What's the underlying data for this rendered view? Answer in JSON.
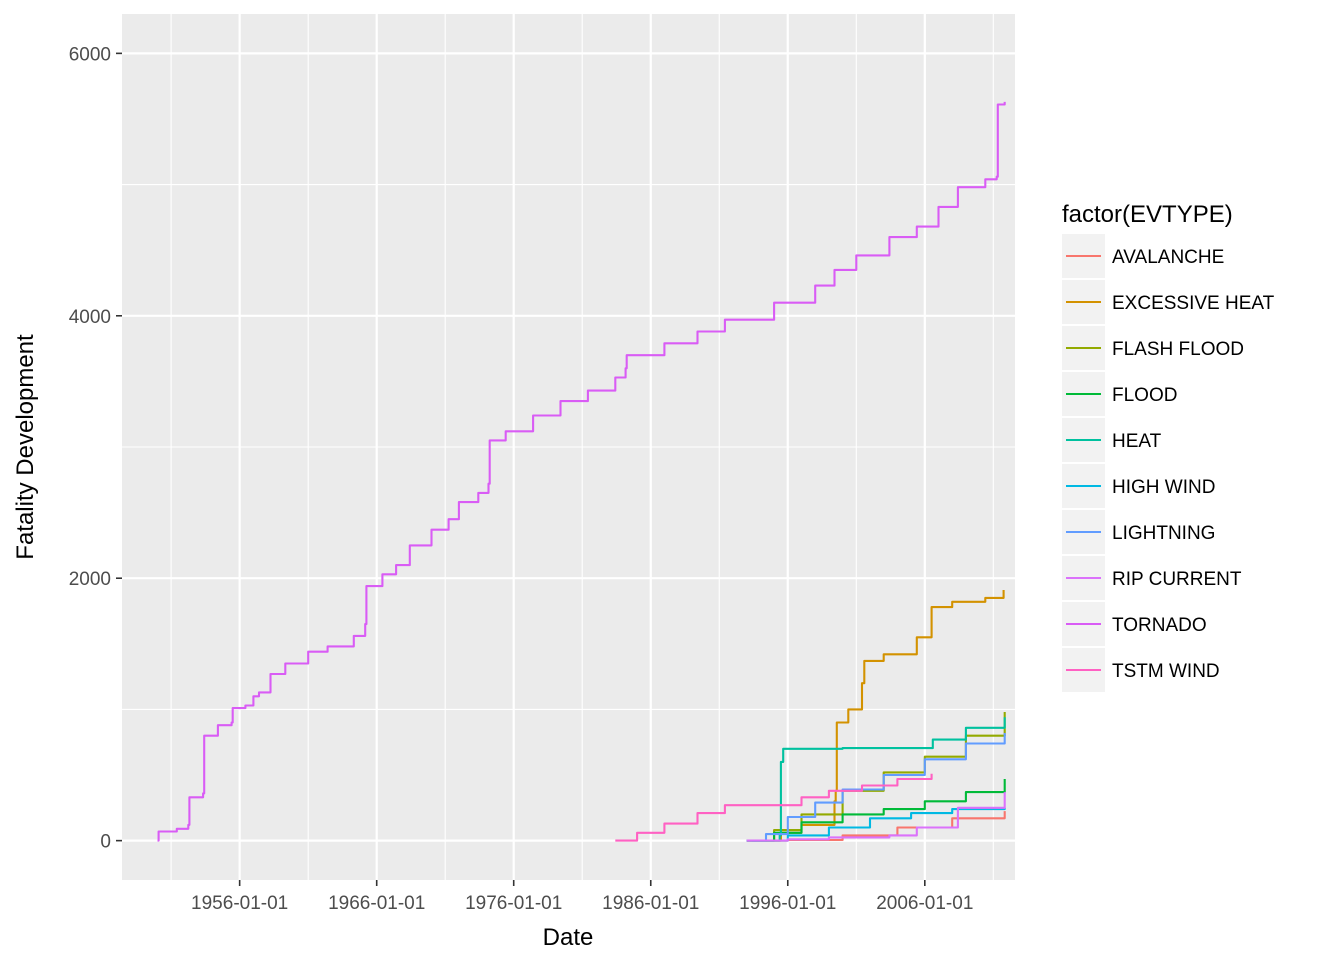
{
  "chart_data": {
    "type": "line",
    "title": "",
    "xlabel": "Date",
    "ylabel": "Fatality Development",
    "x_axis_type": "date",
    "xlim": [
      "1947-06-01",
      "2012-08-01"
    ],
    "ylim": [
      -300,
      6300
    ],
    "x_ticks": [
      "1956-01-01",
      "1966-01-01",
      "1976-01-01",
      "1986-01-01",
      "1996-01-01",
      "2006-01-01"
    ],
    "y_ticks": [
      0,
      2000,
      4000,
      6000
    ],
    "grid": true,
    "legend_title": "factor(EVTYPE)",
    "legend_position": "right",
    "series": [
      {
        "name": "AVALANCHE",
        "color": "#F8766D",
        "points": [
          [
            "1993-01-01",
            0
          ],
          [
            "1996-01-01",
            5
          ],
          [
            "2000-01-01",
            40
          ],
          [
            "2004-01-01",
            100
          ],
          [
            "2008-01-01",
            170
          ],
          [
            "2011-11-01",
            225
          ]
        ]
      },
      {
        "name": "EXCESSIVE HEAT",
        "color": "#D39200",
        "points": [
          [
            "1995-01-01",
            0
          ],
          [
            "1995-07-01",
            60
          ],
          [
            "1997-01-01",
            120
          ],
          [
            "1999-06-01",
            300
          ],
          [
            "1999-07-01",
            380
          ],
          [
            "1999-08-01",
            900
          ],
          [
            "2000-06-01",
            1000
          ],
          [
            "2001-06-01",
            1200
          ],
          [
            "2001-08-01",
            1370
          ],
          [
            "2003-01-01",
            1420
          ],
          [
            "2005-06-01",
            1550
          ],
          [
            "2006-07-01",
            1780
          ],
          [
            "2008-01-01",
            1820
          ],
          [
            "2010-06-01",
            1850
          ],
          [
            "2011-10-01",
            1910
          ]
        ]
      },
      {
        "name": "FLASH FLOOD",
        "color": "#93AA00",
        "points": [
          [
            "1993-01-01",
            0
          ],
          [
            "1995-01-01",
            80
          ],
          [
            "1997-01-01",
            200
          ],
          [
            "2000-01-01",
            380
          ],
          [
            "2003-01-01",
            520
          ],
          [
            "2006-01-01",
            640
          ],
          [
            "2009-01-01",
            800
          ],
          [
            "2011-11-01",
            980
          ]
        ]
      },
      {
        "name": "FLOOD",
        "color": "#00BA38",
        "points": [
          [
            "1993-01-01",
            0
          ],
          [
            "1995-01-01",
            60
          ],
          [
            "1997-01-01",
            140
          ],
          [
            "2000-01-01",
            200
          ],
          [
            "2003-01-01",
            240
          ],
          [
            "2006-01-01",
            300
          ],
          [
            "2009-01-01",
            370
          ],
          [
            "2011-11-01",
            470
          ]
        ]
      },
      {
        "name": "HEAT",
        "color": "#00C19F",
        "points": [
          [
            "1993-06-01",
            0
          ],
          [
            "1995-06-01",
            40
          ],
          [
            "1995-07-01",
            600
          ],
          [
            "1995-09-01",
            700
          ],
          [
            "2000-01-01",
            705
          ],
          [
            "2006-07-01",
            705
          ],
          [
            "2006-08-01",
            770
          ],
          [
            "2009-01-01",
            860
          ],
          [
            "2011-11-01",
            940
          ]
        ]
      },
      {
        "name": "HIGH WIND",
        "color": "#00B9E3",
        "points": [
          [
            "1993-01-01",
            0
          ],
          [
            "1996-01-01",
            40
          ],
          [
            "1999-01-01",
            100
          ],
          [
            "2002-01-01",
            170
          ],
          [
            "2005-01-01",
            210
          ],
          [
            "2008-01-01",
            240
          ],
          [
            "2011-11-01",
            250
          ]
        ]
      },
      {
        "name": "LIGHTNING",
        "color": "#619CFF",
        "points": [
          [
            "1993-01-01",
            0
          ],
          [
            "1994-06-01",
            50
          ],
          [
            "1996-01-01",
            180
          ],
          [
            "1998-01-01",
            290
          ],
          [
            "2000-01-01",
            390
          ],
          [
            "2003-01-01",
            500
          ],
          [
            "2006-01-01",
            620
          ],
          [
            "2009-01-01",
            740
          ],
          [
            "2011-11-01",
            820
          ]
        ]
      },
      {
        "name": "RIP CURRENT",
        "color": "#DB72FB",
        "points": [
          [
            "1993-01-01",
            0
          ],
          [
            "1996-01-01",
            10
          ],
          [
            "1999-01-01",
            25
          ],
          [
            "2003-06-01",
            40
          ],
          [
            "2005-06-01",
            100
          ],
          [
            "2008-06-01",
            250
          ],
          [
            "2011-11-01",
            370
          ]
        ]
      },
      {
        "name": "TORNADO",
        "color": "#D95CF5",
        "points": [
          [
            "1950-01-01",
            0
          ],
          [
            "1950-02-01",
            70
          ],
          [
            "1951-06-01",
            90
          ],
          [
            "1952-04-01",
            120
          ],
          [
            "1952-05-01",
            330
          ],
          [
            "1953-05-01",
            360
          ],
          [
            "1953-06-01",
            800
          ],
          [
            "1954-06-01",
            880
          ],
          [
            "1955-06-01",
            900
          ],
          [
            "1955-07-01",
            1010
          ],
          [
            "1956-06-01",
            1030
          ],
          [
            "1957-01-01",
            1100
          ],
          [
            "1957-06-01",
            1130
          ],
          [
            "1958-04-01",
            1270
          ],
          [
            "1959-05-01",
            1350
          ],
          [
            "1961-01-01",
            1440
          ],
          [
            "1962-06-01",
            1480
          ],
          [
            "1964-05-01",
            1560
          ],
          [
            "1965-03-01",
            1650
          ],
          [
            "1965-04-01",
            1940
          ],
          [
            "1966-06-01",
            2030
          ],
          [
            "1967-06-01",
            2100
          ],
          [
            "1968-06-01",
            2250
          ],
          [
            "1970-01-01",
            2370
          ],
          [
            "1971-04-01",
            2450
          ],
          [
            "1972-01-01",
            2580
          ],
          [
            "1973-06-01",
            2650
          ],
          [
            "1974-03-01",
            2720
          ],
          [
            "1974-04-01",
            3050
          ],
          [
            "1975-06-01",
            3120
          ],
          [
            "1977-06-01",
            3240
          ],
          [
            "1979-06-01",
            3350
          ],
          [
            "1981-06-01",
            3430
          ],
          [
            "1983-06-01",
            3530
          ],
          [
            "1984-03-01",
            3600
          ],
          [
            "1984-04-01",
            3700
          ],
          [
            "1987-01-01",
            3790
          ],
          [
            "1989-06-01",
            3880
          ],
          [
            "1991-06-01",
            3970
          ],
          [
            "1995-01-01",
            4100
          ],
          [
            "1998-01-01",
            4230
          ],
          [
            "1999-06-01",
            4350
          ],
          [
            "2001-01-01",
            4460
          ],
          [
            "2003-06-01",
            4600
          ],
          [
            "2005-06-01",
            4680
          ],
          [
            "2007-01-01",
            4830
          ],
          [
            "2008-06-01",
            4980
          ],
          [
            "2010-06-01",
            5040
          ],
          [
            "2011-04-01",
            5060
          ],
          [
            "2011-05-01",
            5610
          ],
          [
            "2011-11-01",
            5630
          ]
        ]
      },
      {
        "name": "TSTM WIND",
        "color": "#FF61C3",
        "points": [
          [
            "1983-06-01",
            0
          ],
          [
            "1985-01-01",
            60
          ],
          [
            "1987-01-01",
            130
          ],
          [
            "1989-06-01",
            210
          ],
          [
            "1991-06-01",
            270
          ],
          [
            "1995-01-01",
            270
          ],
          [
            "1997-01-01",
            330
          ],
          [
            "1999-01-01",
            380
          ],
          [
            "2001-06-01",
            420
          ],
          [
            "2004-01-01",
            470
          ],
          [
            "2006-07-01",
            510
          ]
        ]
      }
    ]
  }
}
